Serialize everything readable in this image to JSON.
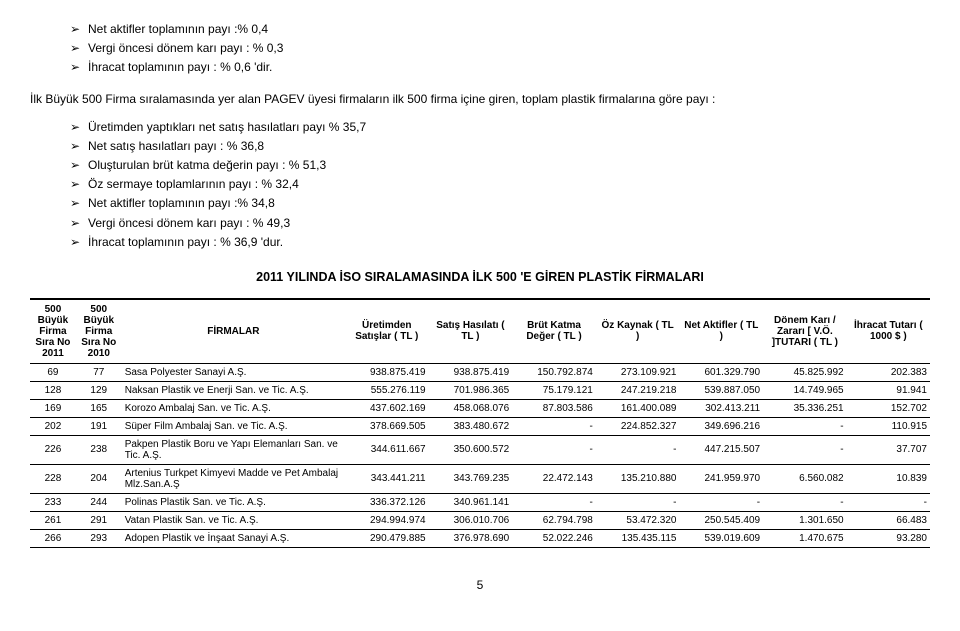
{
  "topBullets": [
    "Net aktifler toplamının payı :% 0,4",
    "Vergi öncesi dönem karı payı : % 0,3",
    "İhracat toplamının payı : % 0,6 'dir."
  ],
  "paragraph": "İlk Büyük 500 Firma sıralamasında yer alan PAGEV üyesi firmaların ilk 500 firma içine giren, toplam plastik firmalarına göre payı :",
  "midBullets": [
    "Üretimden yaptıkları net satış hasılatları payı % 35,7",
    "Net satış hasılatları payı : % 36,8",
    "Oluşturulan brüt katma değerin payı : % 51,3",
    "Öz sermaye toplamlarının payı : % 32,4",
    "Net aktifler toplamının payı :% 34,8",
    "Vergi öncesi dönem karı payı : % 49,3",
    "İhracat toplamının payı : % 36,9 'dur."
  ],
  "tableTitle": "2011 YILINDA İSO SIRALAMASINDA İLK 500 'E GİREN PLASTİK FİRMALARI",
  "headers": {
    "rank2011": "500 Büyük Firma Sıra No 2011",
    "rank2010": "500 Büyük Firma Sıra No 2010",
    "firm": "FİRMALAR",
    "production": "Üretimden Satışlar ( TL )",
    "sales": "Satış Hasılatı ( TL )",
    "gross": "Brüt Katma Değer       ( TL )",
    "equity": "Öz Kaynak ( TL )",
    "netassets": "Net Aktifler ( TL )",
    "profit": "Dönem Karı / Zararı [ V.Ö. ]TUTARI ( TL )",
    "export": "İhracat Tutarı ( 1000 $ )"
  },
  "rows": [
    {
      "r11": "69",
      "r10": "77",
      "firm": "Sasa Polyester Sanayi A.Ş.",
      "c1": "938.875.419",
      "c2": "938.875.419",
      "c3": "150.792.874",
      "c4": "273.109.921",
      "c5": "601.329.790",
      "c6": "45.825.992",
      "c7": "202.383"
    },
    {
      "r11": "128",
      "r10": "129",
      "firm": "Naksan Plastik ve Enerji San. ve Tic. A.Ş.",
      "c1": "555.276.119",
      "c2": "701.986.365",
      "c3": "75.179.121",
      "c4": "247.219.218",
      "c5": "539.887.050",
      "c6": "14.749.965",
      "c7": "91.941"
    },
    {
      "r11": "169",
      "r10": "165",
      "firm": "Korozo Ambalaj San. ve Tic. A.Ş.",
      "c1": "437.602.169",
      "c2": "458.068.076",
      "c3": "87.803.586",
      "c4": "161.400.089",
      "c5": "302.413.211",
      "c6": "35.336.251",
      "c7": "152.702"
    },
    {
      "r11": "202",
      "r10": "191",
      "firm": "Süper Film Ambalaj San. ve Tic. A.Ş.",
      "c1": "378.669.505",
      "c2": "383.480.672",
      "c3": "-",
      "c4": "224.852.327",
      "c5": "349.696.216",
      "c6": "-",
      "c7": "110.915"
    },
    {
      "r11": "226",
      "r10": "238",
      "firm": "Pakpen Plastik Boru ve Yapı Elemanları San. ve Tic. A.Ş.",
      "c1": "344.611.667",
      "c2": "350.600.572",
      "c3": "-",
      "c4": "-",
      "c5": "447.215.507",
      "c6": "-",
      "c7": "37.707"
    },
    {
      "r11": "228",
      "r10": "204",
      "firm": "Artenius Turkpet Kimyevi Madde ve Pet Ambalaj Mlz.San.A.Ş",
      "c1": "343.441.211",
      "c2": "343.769.235",
      "c3": "22.472.143",
      "c4": "135.210.880",
      "c5": "241.959.970",
      "c6": "6.560.082",
      "c7": "10.839"
    },
    {
      "r11": "233",
      "r10": "244",
      "firm": "Polinas Plastik San. ve Tic. A.Ş.",
      "c1": "336.372.126",
      "c2": "340.961.141",
      "c3": "-",
      "c4": "-",
      "c5": "-",
      "c6": "-",
      "c7": "-"
    },
    {
      "r11": "261",
      "r10": "291",
      "firm": "Vatan Plastik San. ve Tic. A.Ş.",
      "c1": "294.994.974",
      "c2": "306.010.706",
      "c3": "62.794.798",
      "c4": "53.472.320",
      "c5": "250.545.409",
      "c6": "1.301.650",
      "c7": "66.483"
    },
    {
      "r11": "266",
      "r10": "293",
      "firm": "Adopen Plastik ve İnşaat Sanayi A.Ş.",
      "c1": "290.479.885",
      "c2": "376.978.690",
      "c3": "52.022.246",
      "c4": "135.435.115",
      "c5": "539.019.609",
      "c6": "1.470.675",
      "c7": "93.280"
    }
  ],
  "pageNumber": "5",
  "style": {
    "background": "#ffffff",
    "text": "#000000",
    "body_fontsize": 12,
    "table_fontsize": 10,
    "title_fontsize": 12.5
  }
}
